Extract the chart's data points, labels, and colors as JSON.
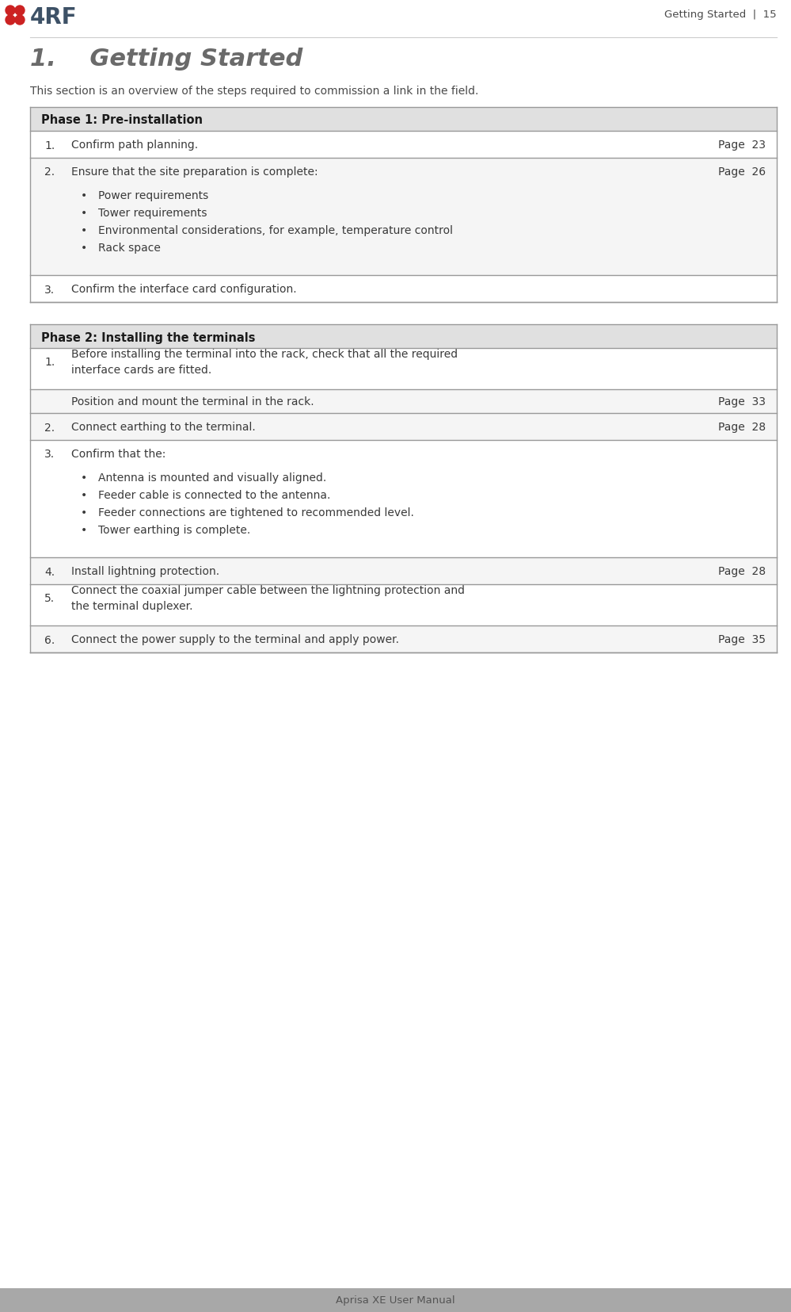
{
  "page_width": 9.99,
  "page_height": 16.56,
  "dpi": 100,
  "bg_color": "#ffffff",
  "header_text": "Getting Started  |  15",
  "header_color": "#4a4a4a",
  "footer_bg": "#a8a8a8",
  "footer_text": "Aprisa XE User Manual",
  "footer_text_color": "#555555",
  "logo_color_dark": "#3d5166",
  "logo_red": "#cc2222",
  "title": "1.    Getting Started",
  "title_color": "#6a6a6a",
  "subtitle": "This section is an overview of the steps required to commission a link in the field.",
  "subtitle_color": "#4a4a4a",
  "border_color": "#999999",
  "phase1_header": "Phase 1: Pre-installation",
  "phase2_header": "Phase 2: Installing the terminals",
  "header_bg": "#e0e0e0",
  "header_font_color": "#1a1a1a",
  "text_color": "#3a3a3a",
  "phase1_rows": [
    {
      "num": "1.",
      "text": "Confirm path planning.",
      "page_ref": "Page  23",
      "bullets": [],
      "extra_lines": 0
    },
    {
      "num": "2.",
      "text": "Ensure that the site preparation is complete:",
      "page_ref": "Page  26",
      "bullets": [
        "Power requirements",
        "Tower requirements",
        "Environmental considerations, for example, temperature control",
        "Rack space"
      ],
      "extra_lines": 0
    },
    {
      "num": "3.",
      "text": "Confirm the interface card configuration.",
      "page_ref": "",
      "bullets": [],
      "extra_lines": 0
    }
  ],
  "phase2_rows": [
    {
      "num": "1.",
      "text": "Before installing the terminal into the rack, check that all the required\ninterface cards are fitted.",
      "page_ref": "",
      "bullets": [],
      "extra_lines": 1,
      "sub_row": {
        "text": "Position and mount the terminal in the rack.",
        "page_ref": "Page  33"
      }
    },
    {
      "num": "2.",
      "text": "Connect earthing to the terminal.",
      "page_ref": "Page  28",
      "bullets": [],
      "extra_lines": 0,
      "sub_row": null
    },
    {
      "num": "3.",
      "text": "Confirm that the:",
      "page_ref": "",
      "bullets": [
        "Antenna is mounted and visually aligned.",
        "Feeder cable is connected to the antenna.",
        "Feeder connections are tightened to recommended level.",
        "Tower earthing is complete."
      ],
      "extra_lines": 0,
      "sub_row": null
    },
    {
      "num": "4.",
      "text": "Install lightning protection.",
      "page_ref": "Page  28",
      "bullets": [],
      "extra_lines": 0,
      "sub_row": null
    },
    {
      "num": "5.",
      "text": "Connect the coaxial jumper cable between the lightning protection and\nthe terminal duplexer.",
      "page_ref": "",
      "bullets": [],
      "extra_lines": 1,
      "sub_row": null
    },
    {
      "num": "6.",
      "text": "Connect the power supply to the terminal and apply power.",
      "page_ref": "Page  35",
      "bullets": [],
      "extra_lines": 0,
      "sub_row": null
    }
  ]
}
